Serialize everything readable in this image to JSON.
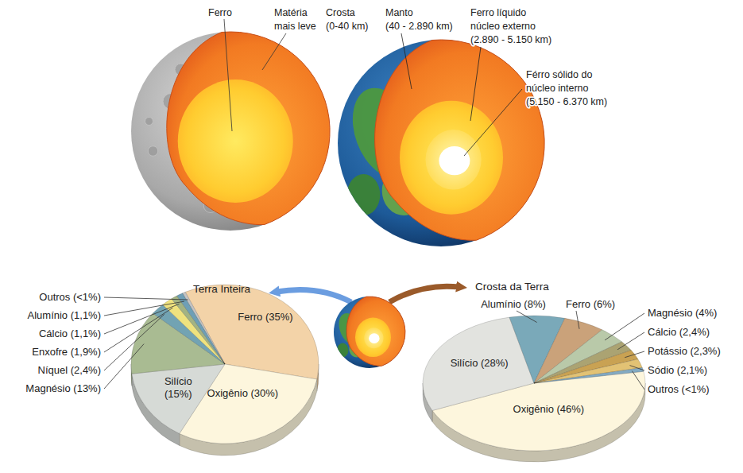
{
  "diagram": {
    "mercury_labels": [
      {
        "lines": [
          "Ferro"
        ]
      },
      {
        "lines": [
          "Matéria",
          "mais leve"
        ]
      }
    ],
    "earth_labels": [
      {
        "lines": [
          "Crosta",
          "(0-40 km)"
        ]
      },
      {
        "lines": [
          "Manto",
          "(40 - 2.890 km)"
        ]
      },
      {
        "lines": [
          "Ferro líquido",
          "núcleo externo",
          "(2.890 - 5.150 km)"
        ]
      },
      {
        "lines": [
          "Férro sólido do",
          "núcleo interno",
          "(5.150 - 6.370 km)"
        ]
      }
    ]
  },
  "chart_data": [
    {
      "type": "pie",
      "title": "Terra Inteira",
      "categories": [
        "Ferro (35%)",
        "Oxigênio (30%)",
        "Silício (15%)",
        "Magnésio (13%)",
        "Níquel (2,4%)",
        "Enxofre (1,9%)",
        "Cálcio (1,1%)",
        "Alumínio (1,1%)",
        "Outros (<1%)"
      ],
      "values": [
        35,
        30,
        15,
        13,
        2.4,
        1.9,
        1.1,
        1.1,
        0.5
      ],
      "colors": [
        "#f3d3a8",
        "#fdf6dd",
        "#d6dad6",
        "#a9bb92",
        "#72a3b3",
        "#efe27e",
        "#a3b383",
        "#6e9fb6",
        "#c4c4c4"
      ]
    },
    {
      "type": "pie",
      "title": "Crosta da Terra",
      "categories": [
        "Oxigênio (46%)",
        "Silício (28%)",
        "Alumínio (8%)",
        "Ferro (6%)",
        "Magnésio (4%)",
        "Cálcio (2,4%)",
        "Potássio (2,3%)",
        "Sódio (2,1%)",
        "Outros (<1%)"
      ],
      "values": [
        46,
        28,
        8,
        6,
        4,
        2.4,
        2.3,
        2.1,
        0.9
      ],
      "colors": [
        "#fdf6dd",
        "#e2e3df",
        "#7aa9b9",
        "#caa27a",
        "#b9c9a9",
        "#aba372",
        "#c9a253",
        "#e2c274",
        "#83aac2"
      ]
    }
  ]
}
